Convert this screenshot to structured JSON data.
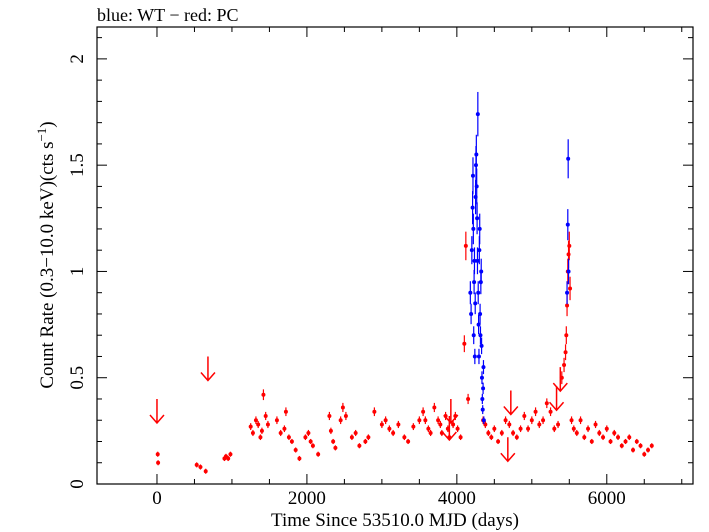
{
  "chart_data": {
    "type": "scatter",
    "title": "blue: WT − red: PC",
    "xlabel": "Time Since 53510.0 MJD (days)",
    "ylabel": "Count Rate (0.3−10.0 keV)(cts s",
    "ylabel_sup": "−1",
    "ylabel_end": ")",
    "xlim": [
      -800,
      7150
    ],
    "ylim": [
      0,
      2.15
    ],
    "x_ticks": [
      0,
      2000,
      4000,
      6000
    ],
    "x_tick_labels": [
      "0",
      "2000",
      "4000",
      "6000"
    ],
    "y_ticks": [
      0,
      0.5,
      1,
      1.5,
      2
    ],
    "y_tick_labels": [
      "0",
      "0.5",
      "1",
      "1.5",
      "2"
    ],
    "grid": false,
    "legend": "none",
    "colors": {
      "PC": "#ff0000",
      "WT": "#0000ff"
    },
    "series": [
      {
        "name": "PC",
        "color": "#ff0000",
        "points": [
          [
            10,
            0.14
          ],
          [
            15,
            0.1
          ],
          [
            530,
            0.09
          ],
          [
            580,
            0.08
          ],
          [
            650,
            0.06
          ],
          [
            900,
            0.12
          ],
          [
            920,
            0.13
          ],
          [
            950,
            0.12
          ],
          [
            980,
            0.14
          ],
          [
            1250,
            0.27
          ],
          [
            1280,
            0.24
          ],
          [
            1320,
            0.3
          ],
          [
            1350,
            0.28
          ],
          [
            1380,
            0.22
          ],
          [
            1400,
            0.25
          ],
          [
            1420,
            0.42
          ],
          [
            1450,
            0.32
          ],
          [
            1480,
            0.28
          ],
          [
            1600,
            0.3
          ],
          [
            1650,
            0.24
          ],
          [
            1700,
            0.26
          ],
          [
            1720,
            0.34
          ],
          [
            1760,
            0.22
          ],
          [
            1800,
            0.2
          ],
          [
            1850,
            0.16
          ],
          [
            1900,
            0.12
          ],
          [
            1980,
            0.22
          ],
          [
            2020,
            0.24
          ],
          [
            2050,
            0.2
          ],
          [
            2080,
            0.18
          ],
          [
            2150,
            0.14
          ],
          [
            2300,
            0.32
          ],
          [
            2320,
            0.25
          ],
          [
            2350,
            0.2
          ],
          [
            2380,
            0.17
          ],
          [
            2450,
            0.3
          ],
          [
            2480,
            0.36
          ],
          [
            2520,
            0.32
          ],
          [
            2600,
            0.22
          ],
          [
            2650,
            0.24
          ],
          [
            2700,
            0.18
          ],
          [
            2780,
            0.2
          ],
          [
            2820,
            0.22
          ],
          [
            2900,
            0.34
          ],
          [
            3000,
            0.28
          ],
          [
            3050,
            0.3
          ],
          [
            3100,
            0.26
          ],
          [
            3150,
            0.24
          ],
          [
            3220,
            0.28
          ],
          [
            3300,
            0.22
          ],
          [
            3350,
            0.2
          ],
          [
            3420,
            0.27
          ],
          [
            3500,
            0.3
          ],
          [
            3550,
            0.34
          ],
          [
            3580,
            0.3
          ],
          [
            3620,
            0.26
          ],
          [
            3650,
            0.24
          ],
          [
            3700,
            0.36
          ],
          [
            3750,
            0.3
          ],
          [
            3780,
            0.28
          ],
          [
            3800,
            0.24
          ],
          [
            3850,
            0.32
          ],
          [
            3880,
            0.26
          ],
          [
            3900,
            0.22
          ],
          [
            3950,
            0.28
          ],
          [
            3980,
            0.32
          ],
          [
            4010,
            0.26
          ],
          [
            4050,
            0.22
          ],
          [
            4100,
            0.66
          ],
          [
            4120,
            1.12
          ],
          [
            4150,
            0.4
          ],
          [
            4350,
            0.3
          ],
          [
            4380,
            0.28
          ],
          [
            4420,
            0.24
          ],
          [
            4460,
            0.22
          ],
          [
            4500,
            0.26
          ],
          [
            4550,
            0.2
          ],
          [
            4600,
            0.24
          ],
          [
            4650,
            0.3
          ],
          [
            4700,
            0.28
          ],
          [
            4750,
            0.24
          ],
          [
            4800,
            0.22
          ],
          [
            4850,
            0.26
          ],
          [
            4900,
            0.32
          ],
          [
            4950,
            0.26
          ],
          [
            5000,
            0.3
          ],
          [
            5050,
            0.34
          ],
          [
            5100,
            0.28
          ],
          [
            5150,
            0.3
          ],
          [
            5200,
            0.38
          ],
          [
            5250,
            0.34
          ],
          [
            5300,
            0.26
          ],
          [
            5350,
            0.28
          ],
          [
            5400,
            0.5
          ],
          [
            5430,
            0.56
          ],
          [
            5450,
            0.62
          ],
          [
            5460,
            0.7
          ],
          [
            5470,
            0.84
          ],
          [
            5480,
            1.0
          ],
          [
            5490,
            1.08
          ],
          [
            5500,
            1.12
          ],
          [
            5510,
            0.92
          ],
          [
            5530,
            0.3
          ],
          [
            5560,
            0.26
          ],
          [
            5600,
            0.24
          ],
          [
            5650,
            0.3
          ],
          [
            5700,
            0.22
          ],
          [
            5750,
            0.26
          ],
          [
            5800,
            0.2
          ],
          [
            5850,
            0.28
          ],
          [
            5900,
            0.24
          ],
          [
            5950,
            0.22
          ],
          [
            6000,
            0.26
          ],
          [
            6050,
            0.2
          ],
          [
            6100,
            0.24
          ],
          [
            6150,
            0.22
          ],
          [
            6200,
            0.18
          ],
          [
            6250,
            0.2
          ],
          [
            6300,
            0.22
          ],
          [
            6350,
            0.16
          ],
          [
            6400,
            0.2
          ],
          [
            6450,
            0.18
          ],
          [
            6500,
            0.14
          ],
          [
            6550,
            0.16
          ],
          [
            6600,
            0.18
          ]
        ]
      },
      {
        "name": "WT",
        "color": "#0000ff",
        "points": [
          [
            4180,
            0.9
          ],
          [
            4190,
            0.8
          ],
          [
            4200,
            1.1
          ],
          [
            4210,
            1.3
          ],
          [
            4215,
            1.45
          ],
          [
            4220,
            1.2
          ],
          [
            4225,
            0.7
          ],
          [
            4230,
            0.95
          ],
          [
            4235,
            1.05
          ],
          [
            4240,
            0.6
          ],
          [
            4245,
            0.85
          ],
          [
            4250,
            1.35
          ],
          [
            4255,
            1.5
          ],
          [
            4260,
            1.55
          ],
          [
            4265,
            1.4
          ],
          [
            4270,
            1.25
          ],
          [
            4275,
            1.05
          ],
          [
            4280,
            1.74
          ],
          [
            4285,
            0.9
          ],
          [
            4290,
            0.75
          ],
          [
            4295,
            0.6
          ],
          [
            4300,
            1.1
          ],
          [
            4305,
            1.2
          ],
          [
            4310,
            0.8
          ],
          [
            4315,
            0.7
          ],
          [
            4320,
            0.95
          ],
          [
            4325,
            1.0
          ],
          [
            4330,
            0.65
          ],
          [
            4335,
            0.5
          ],
          [
            4340,
            0.4
          ],
          [
            4345,
            0.35
          ],
          [
            4350,
            0.45
          ],
          [
            4355,
            0.55
          ],
          [
            4360,
            0.3
          ],
          [
            5470,
            0.9
          ],
          [
            5480,
            1.22
          ],
          [
            5485,
            1.53
          ],
          [
            5490,
            1.0
          ]
        ]
      }
    ],
    "upper_limits": [
      [
        0,
        0.4
      ],
      [
        680,
        0.6
      ],
      [
        3900,
        0.32
      ],
      [
        3920,
        0.4
      ],
      [
        4680,
        0.22
      ],
      [
        4720,
        0.44
      ],
      [
        5330,
        0.46
      ],
      [
        5380,
        0.55
      ]
    ]
  }
}
